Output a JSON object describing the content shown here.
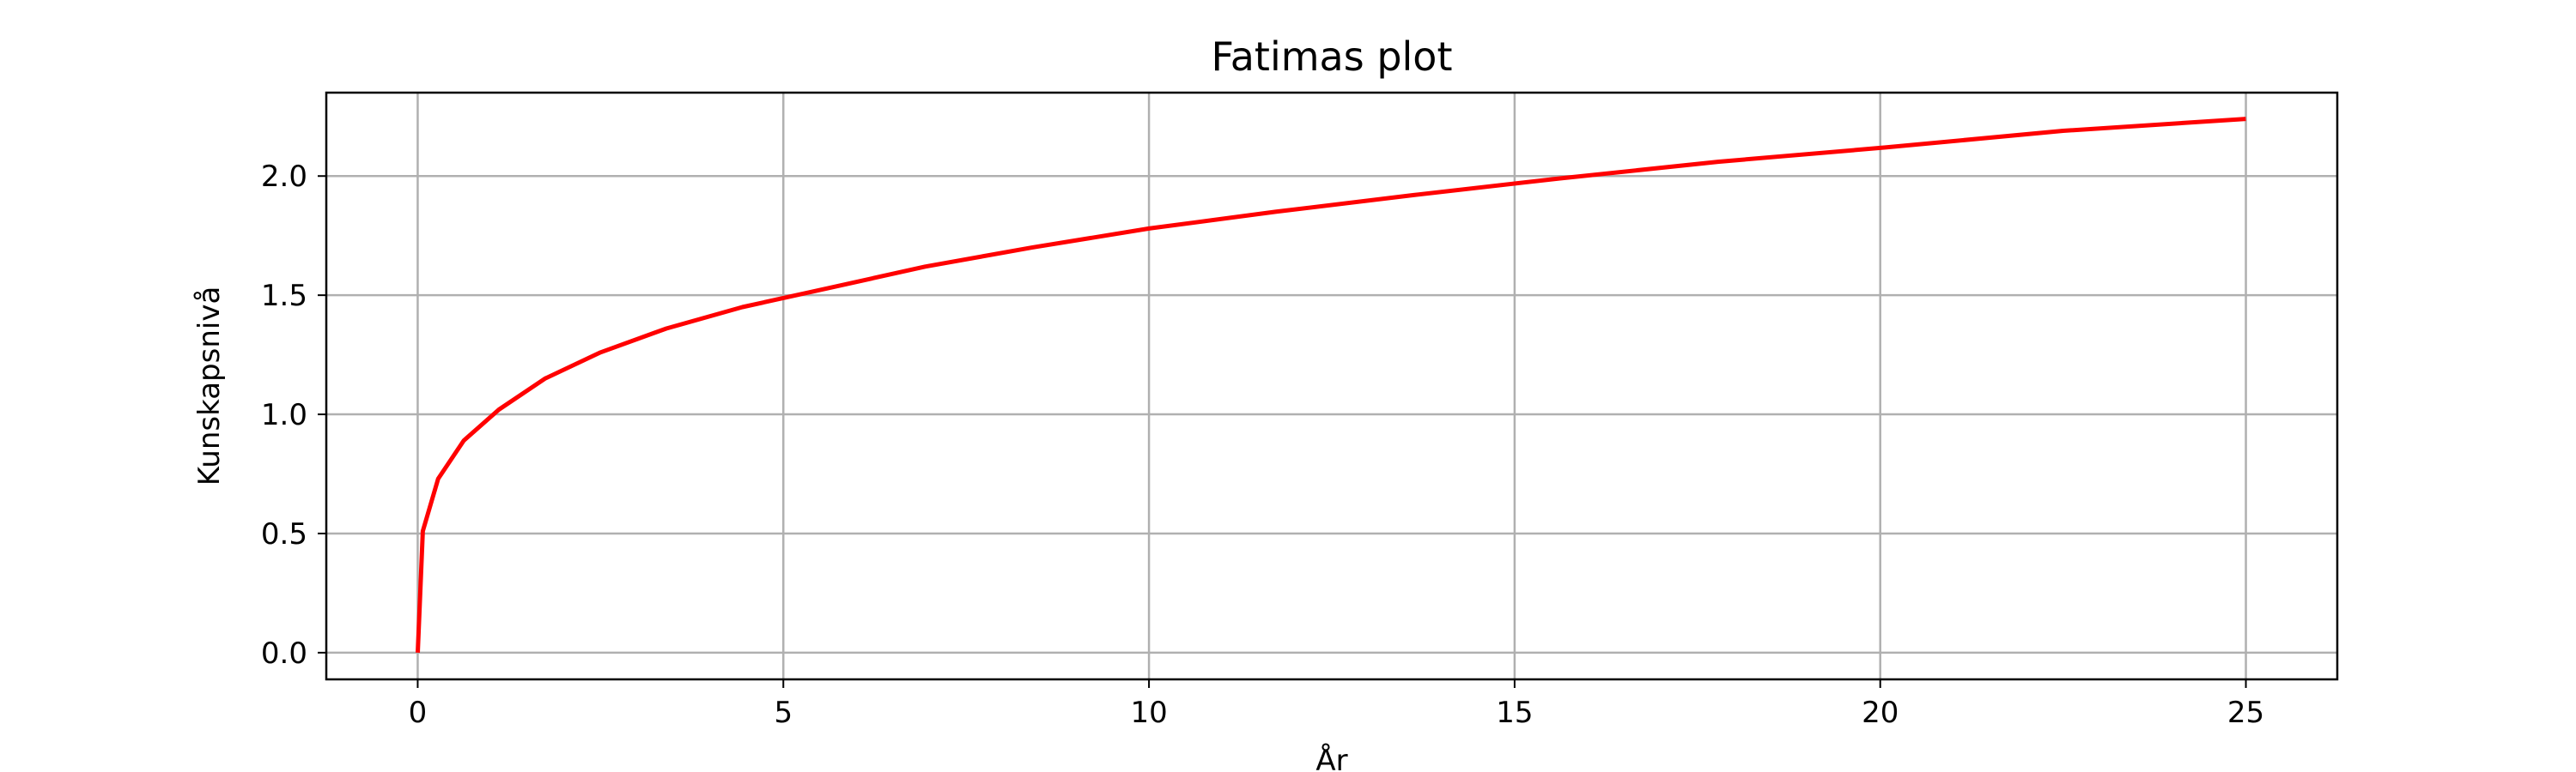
{
  "chart_data": {
    "type": "line",
    "title": "Fatimas plot",
    "xlabel": "År",
    "ylabel": "Kunskapsnivå",
    "xlim": [
      -1.25,
      26.25
    ],
    "ylim": [
      -0.112,
      2.35
    ],
    "xticks": [
      0,
      5,
      10,
      15,
      20,
      25
    ],
    "yticks": [
      0.0,
      0.5,
      1.0,
      1.5,
      2.0
    ],
    "xtick_labels": [
      "0",
      "5",
      "10",
      "15",
      "20",
      "25"
    ],
    "ytick_labels": [
      "0.0",
      "0.5",
      "1.0",
      "1.5",
      "2.0"
    ],
    "grid": true,
    "series": [
      {
        "color": "#ff0000",
        "x": [
          0,
          0.07,
          0.28,
          0.63,
          1.11,
          1.74,
          2.5,
          3.4,
          4.44,
          5.62,
          6.94,
          8.4,
          10.0,
          11.73,
          13.61,
          15.62,
          17.78,
          20.07,
          22.5,
          25.0
        ],
        "y": [
          0.0,
          0.51,
          0.73,
          0.89,
          1.02,
          1.15,
          1.26,
          1.36,
          1.45,
          1.53,
          1.62,
          1.7,
          1.78,
          1.85,
          1.92,
          1.99,
          2.06,
          2.12,
          2.19,
          2.24
        ]
      }
    ]
  }
}
